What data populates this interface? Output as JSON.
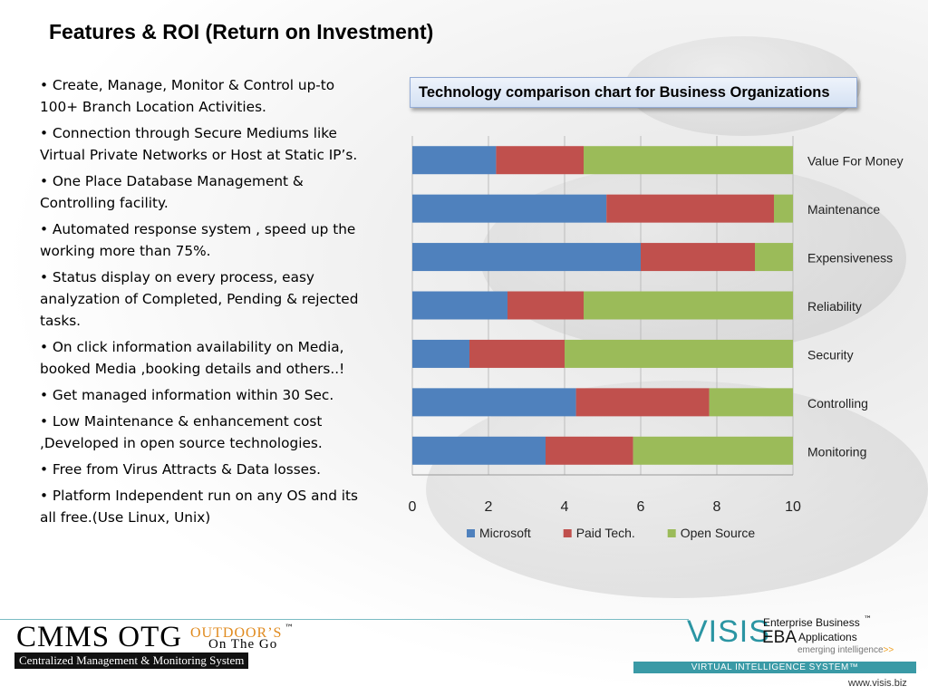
{
  "slide": {
    "title": "Features & ROI (Return on Investment)",
    "bullets": [
      "• Create, Manage, Monitor & Control up-to 100+ Branch Location Activities.",
      "• Connection through Secure Mediums like Virtual Private Networks or Host at Static IP’s.",
      "• One Place Database Management & Controlling facility.",
      "• Automated response system , speed up the working more than 75%.",
      "•  Status display on every process, easy analyzation of Completed, Pending & rejected tasks.",
      "• On click information availability on Media, booked Media ,booking details and others..!",
      "• Get managed information within 30 Sec.",
      "• Low Maintenance & enhancement cost ,Developed in open source technologies.",
      "• Free from Virus Attracts & Data losses.",
      "• Platform Independent run on any OS and its all free.(Use Linux, Unix)"
    ]
  },
  "chart_data": {
    "type": "bar",
    "orientation": "horizontal",
    "stacked": true,
    "title": "Technology comparison chart for Business Organizations",
    "categories": [
      "Value For Money",
      "Maintenance",
      "Expensiveness",
      "Reliability",
      "Security",
      "Controlling",
      "Monitoring"
    ],
    "series": [
      {
        "name": "Microsoft",
        "color": "#4f81bd",
        "values": [
          2.2,
          5.1,
          6.0,
          2.5,
          1.5,
          4.3,
          3.5
        ]
      },
      {
        "name": "Paid Tech.",
        "color": "#c0504d",
        "values": [
          2.3,
          4.4,
          3.0,
          2.0,
          2.5,
          3.5,
          2.3
        ]
      },
      {
        "name": "Open Source",
        "color": "#9bbb59",
        "values": [
          5.5,
          0.5,
          1.0,
          5.5,
          6.0,
          2.2,
          4.2
        ]
      }
    ],
    "xlim": [
      0,
      10
    ],
    "xticks": [
      0,
      2,
      4,
      6,
      8,
      10
    ],
    "grid": "vertical",
    "category_labels_side": "right",
    "legend_position": "bottom"
  },
  "footer": {
    "cmms_logo": "CMMS OTG",
    "outdoors_text": "OUTDOOR’S",
    "trademark": "™",
    "on_the_go": "On The Go",
    "cmms_subtitle": "Centralized Management & Monitoring System",
    "visis_logo": "VISIS",
    "eba_logo": "EBA",
    "enterprise_business": "Enterprise Business",
    "applications": "Applications",
    "tagline": "emerging intelligence",
    "tagline_arrows": ">>",
    "virtual_intelligence": "VIRTUAL INTELLIGENCE SYSTEM™",
    "website": "www.visis.biz"
  }
}
